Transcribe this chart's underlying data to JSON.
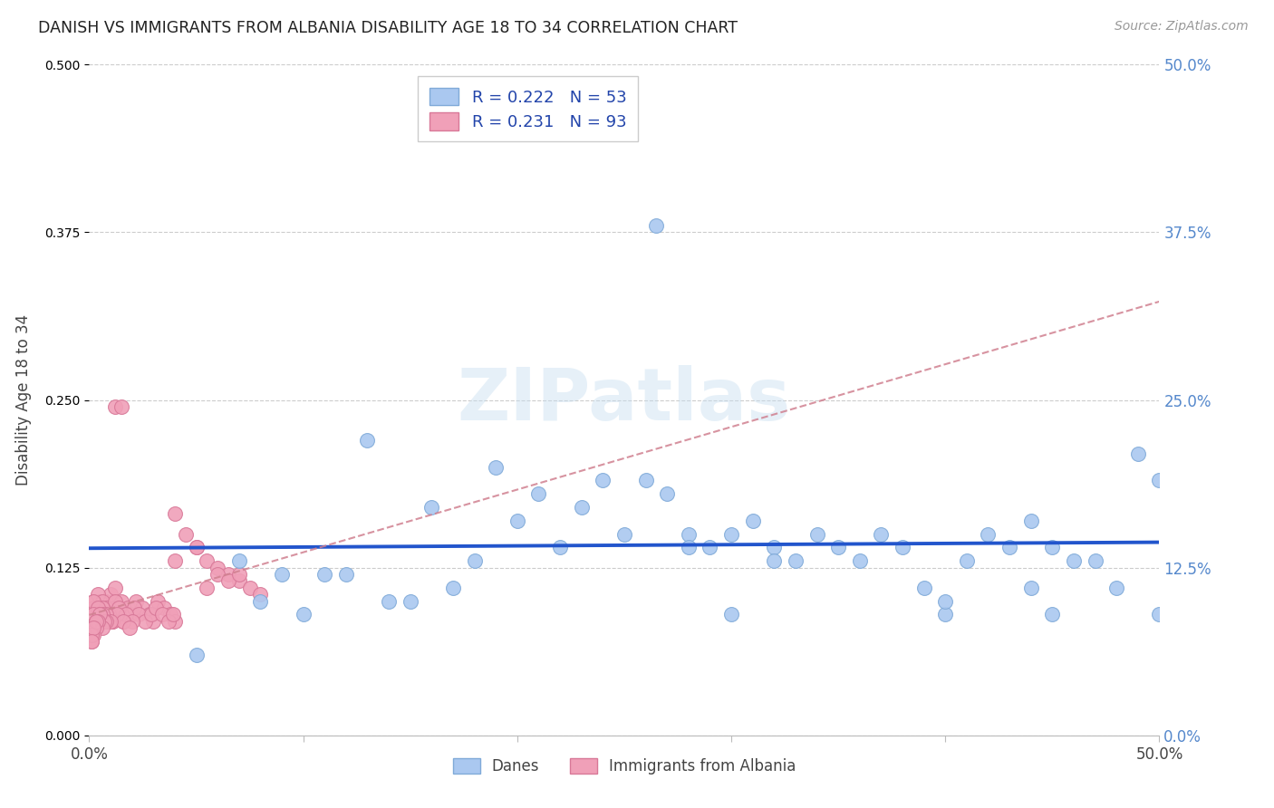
{
  "title": "DANISH VS IMMIGRANTS FROM ALBANIA DISABILITY AGE 18 TO 34 CORRELATION CHART",
  "source": "Source: ZipAtlas.com",
  "ylabel": "Disability Age 18 to 34",
  "xlim": [
    0.0,
    0.5
  ],
  "ylim": [
    0.0,
    0.5
  ],
  "x_tick_positions": [
    0.0,
    0.1,
    0.2,
    0.3,
    0.4,
    0.5
  ],
  "x_tick_labels": [
    "0.0%",
    "",
    "",
    "",
    "",
    "50.0%"
  ],
  "y_ticks_right": [
    0.0,
    0.125,
    0.25,
    0.375,
    0.5
  ],
  "y_tick_labels_right": [
    "0.0%",
    "12.5%",
    "25.0%",
    "37.5%",
    "50.0%"
  ],
  "watermark": "ZIPatlas",
  "danes_color": "#aac8f0",
  "danes_edge_color": "#80aad8",
  "albania_color": "#f0a0b8",
  "albania_edge_color": "#d87898",
  "trend_danes_color": "#2255cc",
  "trend_albania_color": "#d08090",
  "danes_R": 0.222,
  "danes_N": 53,
  "albania_R": 0.231,
  "albania_N": 93,
  "legend_label_danes": "Danes",
  "legend_label_albania": "Immigrants from Albania",
  "danes_x": [
    0.265,
    0.05,
    0.08,
    0.1,
    0.12,
    0.15,
    0.17,
    0.19,
    0.21,
    0.22,
    0.23,
    0.24,
    0.26,
    0.27,
    0.28,
    0.29,
    0.3,
    0.31,
    0.32,
    0.33,
    0.34,
    0.35,
    0.37,
    0.38,
    0.39,
    0.4,
    0.41,
    0.42,
    0.43,
    0.44,
    0.45,
    0.46,
    0.47,
    0.49,
    0.13,
    0.16,
    0.18,
    0.2,
    0.25,
    0.28,
    0.32,
    0.36,
    0.4,
    0.44,
    0.48,
    0.5,
    0.07,
    0.09,
    0.11,
    0.14,
    0.3,
    0.45,
    0.5
  ],
  "danes_y": [
    0.38,
    0.06,
    0.1,
    0.09,
    0.12,
    0.1,
    0.11,
    0.2,
    0.18,
    0.14,
    0.17,
    0.19,
    0.19,
    0.18,
    0.15,
    0.14,
    0.15,
    0.16,
    0.14,
    0.13,
    0.15,
    0.14,
    0.15,
    0.14,
    0.11,
    0.09,
    0.13,
    0.15,
    0.14,
    0.16,
    0.14,
    0.13,
    0.13,
    0.21,
    0.22,
    0.17,
    0.13,
    0.16,
    0.15,
    0.14,
    0.13,
    0.13,
    0.1,
    0.11,
    0.11,
    0.19,
    0.13,
    0.12,
    0.12,
    0.1,
    0.09,
    0.09,
    0.09
  ],
  "albania_x": [
    0.012,
    0.015,
    0.003,
    0.005,
    0.006,
    0.008,
    0.01,
    0.012,
    0.015,
    0.018,
    0.02,
    0.022,
    0.025,
    0.028,
    0.03,
    0.032,
    0.035,
    0.038,
    0.04,
    0.003,
    0.005,
    0.007,
    0.009,
    0.011,
    0.013,
    0.016,
    0.019,
    0.021,
    0.023,
    0.026,
    0.029,
    0.031,
    0.034,
    0.037,
    0.039,
    0.002,
    0.004,
    0.006,
    0.008,
    0.01,
    0.012,
    0.014,
    0.017,
    0.02,
    0.003,
    0.005,
    0.007,
    0.009,
    0.011,
    0.013,
    0.016,
    0.019,
    0.002,
    0.004,
    0.006,
    0.008,
    0.01,
    0.002,
    0.004,
    0.006,
    0.008,
    0.003,
    0.005,
    0.007,
    0.002,
    0.004,
    0.006,
    0.003,
    0.005,
    0.002,
    0.004,
    0.003,
    0.002,
    0.001,
    0.003,
    0.001,
    0.002,
    0.001,
    0.04,
    0.045,
    0.05,
    0.055,
    0.06,
    0.065,
    0.07,
    0.075,
    0.08,
    0.055,
    0.06,
    0.065,
    0.04,
    0.05,
    0.07
  ],
  "albania_y": [
    0.245,
    0.245,
    0.085,
    0.09,
    0.095,
    0.1,
    0.105,
    0.11,
    0.1,
    0.095,
    0.09,
    0.1,
    0.095,
    0.09,
    0.085,
    0.1,
    0.095,
    0.09,
    0.085,
    0.095,
    0.1,
    0.095,
    0.09,
    0.085,
    0.09,
    0.085,
    0.09,
    0.095,
    0.09,
    0.085,
    0.09,
    0.095,
    0.09,
    0.085,
    0.09,
    0.1,
    0.105,
    0.1,
    0.095,
    0.09,
    0.1,
    0.095,
    0.09,
    0.085,
    0.085,
    0.09,
    0.085,
    0.09,
    0.085,
    0.09,
    0.085,
    0.08,
    0.095,
    0.09,
    0.095,
    0.09,
    0.085,
    0.1,
    0.095,
    0.09,
    0.085,
    0.085,
    0.09,
    0.085,
    0.09,
    0.085,
    0.08,
    0.085,
    0.09,
    0.08,
    0.085,
    0.08,
    0.075,
    0.07,
    0.085,
    0.075,
    0.08,
    0.07,
    0.165,
    0.15,
    0.14,
    0.13,
    0.125,
    0.12,
    0.115,
    0.11,
    0.105,
    0.11,
    0.12,
    0.115,
    0.13,
    0.14,
    0.12
  ]
}
